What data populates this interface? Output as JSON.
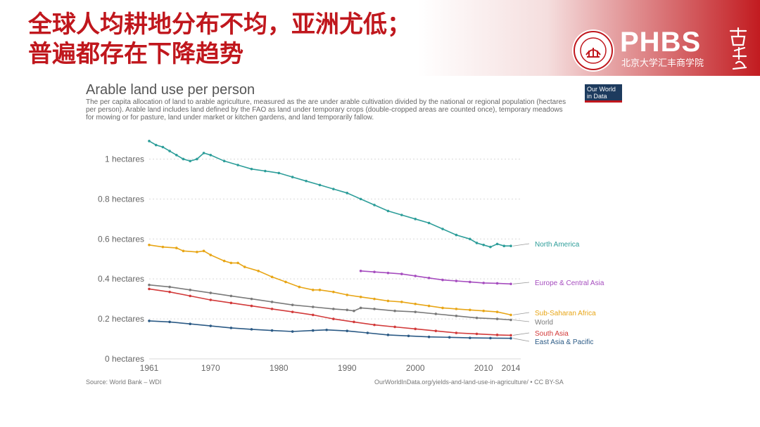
{
  "slide": {
    "title_line1": "全球人均耕地分布不均，亚洲尤低；",
    "title_line2": "普遍都存在下降趋势"
  },
  "brand": {
    "name": "PHBS",
    "subtitle": "北京大学汇丰商学院",
    "calligraphy": "商学院",
    "seal_text": "PEKING UNIVERSITY",
    "seal_year": "1898",
    "color": "#c0171d"
  },
  "badge": {
    "line1": "Our World",
    "line2": "in Data"
  },
  "chart_data": {
    "type": "line",
    "title": "Arable land use per person",
    "subtitle": "The per capita allocation of land to arable agriculture, measured as the are under arable cultivation divided by the national or regional population (hectares per person). Arable land includes land defined by the FAO as land under temporary crops (double-cropped areas are counted once), temporary meadows for mowing or for pasture, land under market or kitchen gardens, and land temporarily fallow.",
    "xlabel": "",
    "ylabel": "",
    "xlim": [
      1961,
      2014
    ],
    "ylim": [
      0,
      1.1
    ],
    "x_ticks": [
      "1961",
      "1970",
      "1980",
      "1990",
      "2000",
      "2010",
      "2014"
    ],
    "y_ticks": [
      "0 hectares",
      "0.2 hectares",
      "0.4 hectares",
      "0.6 hectares",
      "0.8 hectares",
      "1 hectares"
    ],
    "grid": "horizontal dotted",
    "legend": "right, labels at line ends",
    "series": [
      {
        "name": "North America",
        "color": "#2e9e9a",
        "points": [
          [
            1961,
            1.09
          ],
          [
            1962,
            1.07
          ],
          [
            1963,
            1.06
          ],
          [
            1964,
            1.04
          ],
          [
            1965,
            1.02
          ],
          [
            1966,
            1.0
          ],
          [
            1967,
            0.99
          ],
          [
            1968,
            1.0
          ],
          [
            1969,
            1.03
          ],
          [
            1970,
            1.02
          ],
          [
            1972,
            0.99
          ],
          [
            1974,
            0.97
          ],
          [
            1976,
            0.95
          ],
          [
            1978,
            0.94
          ],
          [
            1980,
            0.93
          ],
          [
            1982,
            0.91
          ],
          [
            1984,
            0.89
          ],
          [
            1986,
            0.87
          ],
          [
            1988,
            0.85
          ],
          [
            1990,
            0.83
          ],
          [
            1992,
            0.8
          ],
          [
            1994,
            0.77
          ],
          [
            1996,
            0.74
          ],
          [
            1998,
            0.72
          ],
          [
            2000,
            0.7
          ],
          [
            2002,
            0.68
          ],
          [
            2004,
            0.65
          ],
          [
            2006,
            0.62
          ],
          [
            2008,
            0.6
          ],
          [
            2009,
            0.58
          ],
          [
            2010,
            0.57
          ],
          [
            2011,
            0.56
          ],
          [
            2012,
            0.575
          ],
          [
            2013,
            0.565
          ],
          [
            2014,
            0.565
          ]
        ]
      },
      {
        "name": "Europe & Central Asia",
        "color": "#a64dbf",
        "points": [
          [
            1992,
            0.44
          ],
          [
            1994,
            0.435
          ],
          [
            1996,
            0.43
          ],
          [
            1998,
            0.425
          ],
          [
            2000,
            0.415
          ],
          [
            2002,
            0.405
          ],
          [
            2004,
            0.395
          ],
          [
            2006,
            0.39
          ],
          [
            2008,
            0.385
          ],
          [
            2010,
            0.38
          ],
          [
            2012,
            0.378
          ],
          [
            2014,
            0.375
          ]
        ]
      },
      {
        "name": "Sub-Saharan Africa",
        "color": "#e8a617",
        "points": [
          [
            1961,
            0.57
          ],
          [
            1963,
            0.56
          ],
          [
            1965,
            0.555
          ],
          [
            1966,
            0.54
          ],
          [
            1968,
            0.535
          ],
          [
            1969,
            0.54
          ],
          [
            1970,
            0.52
          ],
          [
            1972,
            0.49
          ],
          [
            1973,
            0.48
          ],
          [
            1974,
            0.48
          ],
          [
            1975,
            0.46
          ],
          [
            1977,
            0.44
          ],
          [
            1979,
            0.41
          ],
          [
            1981,
            0.385
          ],
          [
            1983,
            0.36
          ],
          [
            1985,
            0.345
          ],
          [
            1986,
            0.345
          ],
          [
            1988,
            0.335
          ],
          [
            1990,
            0.32
          ],
          [
            1992,
            0.31
          ],
          [
            1994,
            0.3
          ],
          [
            1996,
            0.29
          ],
          [
            1998,
            0.285
          ],
          [
            2000,
            0.275
          ],
          [
            2002,
            0.265
          ],
          [
            2004,
            0.255
          ],
          [
            2006,
            0.25
          ],
          [
            2008,
            0.245
          ],
          [
            2010,
            0.24
          ],
          [
            2012,
            0.235
          ],
          [
            2014,
            0.22
          ]
        ]
      },
      {
        "name": "World",
        "color": "#7a7a7a",
        "points": [
          [
            1961,
            0.37
          ],
          [
            1964,
            0.36
          ],
          [
            1967,
            0.345
          ],
          [
            1970,
            0.33
          ],
          [
            1973,
            0.315
          ],
          [
            1976,
            0.3
          ],
          [
            1979,
            0.285
          ],
          [
            1982,
            0.27
          ],
          [
            1985,
            0.26
          ],
          [
            1988,
            0.25
          ],
          [
            1990,
            0.245
          ],
          [
            1991,
            0.24
          ],
          [
            1992,
            0.255
          ],
          [
            1994,
            0.25
          ],
          [
            1997,
            0.24
          ],
          [
            2000,
            0.235
          ],
          [
            2003,
            0.225
          ],
          [
            2006,
            0.215
          ],
          [
            2009,
            0.205
          ],
          [
            2012,
            0.2
          ],
          [
            2014,
            0.195
          ]
        ]
      },
      {
        "name": "South Asia",
        "color": "#d23a3a",
        "points": [
          [
            1961,
            0.35
          ],
          [
            1964,
            0.335
          ],
          [
            1967,
            0.315
          ],
          [
            1970,
            0.295
          ],
          [
            1973,
            0.28
          ],
          [
            1976,
            0.265
          ],
          [
            1979,
            0.25
          ],
          [
            1982,
            0.235
          ],
          [
            1985,
            0.22
          ],
          [
            1988,
            0.2
          ],
          [
            1991,
            0.185
          ],
          [
            1994,
            0.17
          ],
          [
            1997,
            0.16
          ],
          [
            2000,
            0.15
          ],
          [
            2003,
            0.14
          ],
          [
            2006,
            0.13
          ],
          [
            2009,
            0.125
          ],
          [
            2012,
            0.12
          ],
          [
            2014,
            0.118
          ]
        ]
      },
      {
        "name": "East Asia & Pacific",
        "color": "#2b5a85",
        "points": [
          [
            1961,
            0.19
          ],
          [
            1964,
            0.185
          ],
          [
            1967,
            0.175
          ],
          [
            1970,
            0.165
          ],
          [
            1973,
            0.155
          ],
          [
            1976,
            0.148
          ],
          [
            1979,
            0.142
          ],
          [
            1982,
            0.137
          ],
          [
            1985,
            0.142
          ],
          [
            1987,
            0.145
          ],
          [
            1990,
            0.14
          ],
          [
            1993,
            0.13
          ],
          [
            1996,
            0.12
          ],
          [
            1999,
            0.115
          ],
          [
            2002,
            0.11
          ],
          [
            2005,
            0.108
          ],
          [
            2008,
            0.105
          ],
          [
            2011,
            0.104
          ],
          [
            2014,
            0.103
          ]
        ]
      }
    ]
  },
  "source": {
    "left": "Source: World Bank – WDI",
    "right": "OurWorldInData.org/yields-and-land-use-in-agriculture/ • CC BY-SA"
  }
}
